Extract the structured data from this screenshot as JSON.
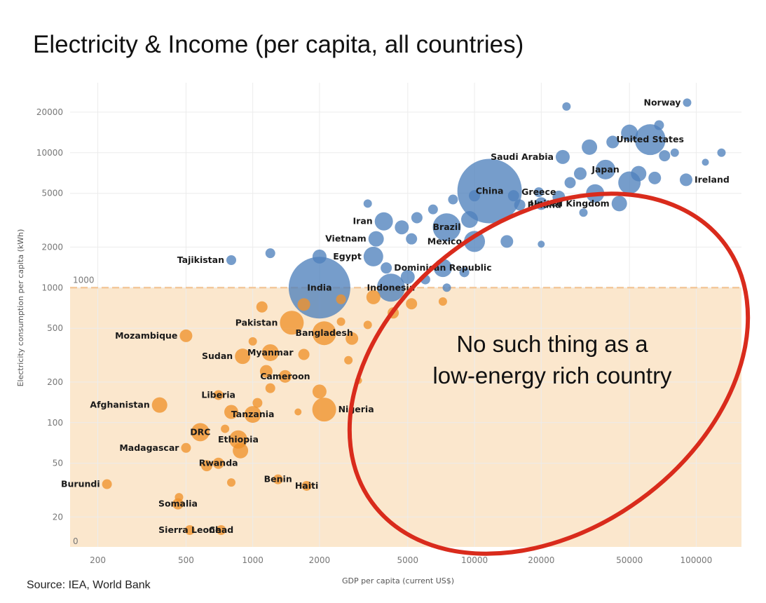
{
  "chart_data": {
    "type": "scatter",
    "title": "Electricity & Income (per capita, all countries)",
    "source": "Source: IEA, World Bank",
    "xlabel": "GDP per capita (current US$)",
    "ylabel": "Electricity consumption per capita (kWh)",
    "x_scale": "log",
    "y_scale": "log",
    "xlim": [
      150,
      160000
    ],
    "ylim": [
      12,
      33000
    ],
    "x_ticks": [
      200,
      500,
      1000,
      2000,
      5000,
      10000,
      20000,
      50000,
      100000
    ],
    "x_tick_labels": [
      "200",
      "500",
      "1000",
      "2000",
      "5000",
      "10000",
      "20000",
      "50000",
      "100000"
    ],
    "y_ticks": [
      20,
      50,
      100,
      200,
      500,
      1000,
      2000,
      5000,
      10000,
      20000
    ],
    "y_tick_labels": [
      "20",
      "50",
      "100",
      "200",
      "500",
      "1000",
      "2000",
      "5000",
      "10000",
      "20000"
    ],
    "y_zero_label": "0",
    "grid": true,
    "threshold": {
      "y": 1000,
      "label": "1000"
    },
    "colors": {
      "high": "#4f81bd",
      "low": "#f0922b",
      "band": "#fbe7cd",
      "ellipse": "#d92b1c",
      "threshold_line": "#f3c99d"
    },
    "callout": {
      "lines": [
        "No such thing as a",
        "low-energy rich country"
      ]
    },
    "points": [
      {
        "name": "Norway",
        "x": 91000,
        "y": 23500,
        "size": 6,
        "group": "high",
        "label_side": "left"
      },
      {
        "name": "United States",
        "x": 62000,
        "y": 12500,
        "size": 22,
        "group": "high",
        "label_side": "center"
      },
      {
        "name": "Saudi Arabia",
        "x": 25000,
        "y": 9300,
        "size": 10,
        "group": "high",
        "label_side": "left"
      },
      {
        "name": "Japan",
        "x": 39000,
        "y": 7500,
        "size": 14,
        "group": "high",
        "label_side": "center"
      },
      {
        "name": "Ireland",
        "x": 90000,
        "y": 6300,
        "size": 9,
        "group": "high",
        "label_side": "right"
      },
      {
        "name": "China",
        "x": 11700,
        "y": 5200,
        "size": 46,
        "group": "high",
        "label_side": "center"
      },
      {
        "name": "Greece",
        "x": 19500,
        "y": 5100,
        "size": 7,
        "group": "high",
        "label_side": "center"
      },
      {
        "name": "Poland",
        "x": 16000,
        "y": 4100,
        "size": 8,
        "group": "high",
        "label_side": "right"
      },
      {
        "name": "United Kingdom",
        "x": 45000,
        "y": 4200,
        "size": 11,
        "group": "high",
        "label_side": "left"
      },
      {
        "name": "Iran",
        "x": 3900,
        "y": 3100,
        "size": 13,
        "group": "high",
        "label_side": "left"
      },
      {
        "name": "Brazil",
        "x": 7500,
        "y": 2800,
        "size": 20,
        "group": "high",
        "label_side": "center"
      },
      {
        "name": "Mexico",
        "x": 10000,
        "y": 2200,
        "size": 15,
        "group": "high",
        "label_side": "left"
      },
      {
        "name": "Vietnam",
        "x": 3600,
        "y": 2300,
        "size": 11,
        "group": "high",
        "label_side": "left"
      },
      {
        "name": "Tajikistan",
        "x": 800,
        "y": 1600,
        "size": 7,
        "group": "high",
        "label_side": "left"
      },
      {
        "name": "Egypt",
        "x": 3500,
        "y": 1700,
        "size": 14,
        "group": "high",
        "label_side": "left"
      },
      {
        "name": "Dominican Republic",
        "x": 7200,
        "y": 1400,
        "size": 13,
        "group": "high",
        "label_side": "center"
      },
      {
        "name": "India",
        "x": 2000,
        "y": 1000,
        "size": 44,
        "group": "high",
        "label_side": "center"
      },
      {
        "name": "Indonesia",
        "x": 4200,
        "y": 1000,
        "size": 20,
        "group": "high",
        "label_side": "center"
      },
      {
        "name": "Pakistan",
        "x": 1500,
        "y": 550,
        "size": 17,
        "group": "low",
        "label_side": "left"
      },
      {
        "name": "Bangladesh",
        "x": 2100,
        "y": 460,
        "size": 17,
        "group": "low",
        "label_side": "center"
      },
      {
        "name": "Mozambique",
        "x": 500,
        "y": 440,
        "size": 9,
        "group": "low",
        "label_side": "left"
      },
      {
        "name": "Myanmar",
        "x": 1200,
        "y": 330,
        "size": 12,
        "group": "low",
        "label_side": "center"
      },
      {
        "name": "Sudan",
        "x": 900,
        "y": 310,
        "size": 11,
        "group": "low",
        "label_side": "left"
      },
      {
        "name": "Cameroon",
        "x": 1400,
        "y": 220,
        "size": 9,
        "group": "low",
        "label_side": "center"
      },
      {
        "name": "Liberia",
        "x": 700,
        "y": 160,
        "size": 7,
        "group": "low",
        "label_side": "center"
      },
      {
        "name": "Afghanistan",
        "x": 380,
        "y": 135,
        "size": 11,
        "group": "low",
        "label_side": "left"
      },
      {
        "name": "Nigeria",
        "x": 2100,
        "y": 125,
        "size": 17,
        "group": "low",
        "label_side": "right"
      },
      {
        "name": "Tanzania",
        "x": 1000,
        "y": 115,
        "size": 12,
        "group": "low",
        "label_side": "center"
      },
      {
        "name": "DRC",
        "x": 580,
        "y": 85,
        "size": 13,
        "group": "low",
        "label_side": "center"
      },
      {
        "name": "Ethiopia",
        "x": 860,
        "y": 75,
        "size": 13,
        "group": "low",
        "label_side": "center"
      },
      {
        "name": "Madagascar",
        "x": 500,
        "y": 65,
        "size": 7,
        "group": "low",
        "label_side": "left"
      },
      {
        "name": "Rwanda",
        "x": 700,
        "y": 50,
        "size": 8,
        "group": "low",
        "label_side": "center"
      },
      {
        "name": "Benin",
        "x": 1300,
        "y": 38,
        "size": 7,
        "group": "low",
        "label_side": "center"
      },
      {
        "name": "Burundi",
        "x": 220,
        "y": 35,
        "size": 7,
        "group": "low",
        "label_side": "left"
      },
      {
        "name": "Haiti",
        "x": 1750,
        "y": 34,
        "size": 7,
        "group": "low",
        "label_side": "center"
      },
      {
        "name": "Somalia",
        "x": 460,
        "y": 25,
        "size": 8,
        "group": "low",
        "label_side": "center"
      },
      {
        "name": "Sierra Leone",
        "x": 520,
        "y": 16,
        "size": 7,
        "group": "low",
        "label_side": "center"
      },
      {
        "name": "Chad",
        "x": 720,
        "y": 16,
        "size": 7,
        "group": "low",
        "label_side": "center"
      },
      {
        "x": 26000,
        "y": 22000,
        "size": 6,
        "group": "high"
      },
      {
        "x": 50000,
        "y": 14000,
        "size": 12,
        "group": "high"
      },
      {
        "x": 42000,
        "y": 12000,
        "size": 9,
        "group": "high"
      },
      {
        "x": 33000,
        "y": 11000,
        "size": 11,
        "group": "high"
      },
      {
        "x": 68000,
        "y": 16000,
        "size": 7,
        "group": "high"
      },
      {
        "x": 80000,
        "y": 10000,
        "size": 6,
        "group": "high"
      },
      {
        "x": 72000,
        "y": 9500,
        "size": 8,
        "group": "high"
      },
      {
        "x": 110000,
        "y": 8500,
        "size": 5,
        "group": "high"
      },
      {
        "x": 130000,
        "y": 10000,
        "size": 6,
        "group": "high"
      },
      {
        "x": 50000,
        "y": 6000,
        "size": 16,
        "group": "high"
      },
      {
        "x": 55000,
        "y": 7000,
        "size": 11,
        "group": "high"
      },
      {
        "x": 65000,
        "y": 6500,
        "size": 9,
        "group": "high"
      },
      {
        "x": 30000,
        "y": 7000,
        "size": 9,
        "group": "high"
      },
      {
        "x": 27000,
        "y": 6000,
        "size": 8,
        "group": "high"
      },
      {
        "x": 35000,
        "y": 5000,
        "size": 13,
        "group": "high"
      },
      {
        "x": 24000,
        "y": 4700,
        "size": 9,
        "group": "high"
      },
      {
        "x": 20000,
        "y": 4200,
        "size": 9,
        "group": "high"
      },
      {
        "x": 15000,
        "y": 4800,
        "size": 8,
        "group": "high"
      },
      {
        "x": 31000,
        "y": 3600,
        "size": 6,
        "group": "high"
      },
      {
        "x": 9500,
        "y": 3200,
        "size": 12,
        "group": "high"
      },
      {
        "x": 10000,
        "y": 4800,
        "size": 8,
        "group": "high"
      },
      {
        "x": 8000,
        "y": 4500,
        "size": 7,
        "group": "high"
      },
      {
        "x": 14000,
        "y": 2200,
        "size": 9,
        "group": "high"
      },
      {
        "x": 20000,
        "y": 2100,
        "size": 5,
        "group": "high"
      },
      {
        "x": 6500,
        "y": 3800,
        "size": 7,
        "group": "high"
      },
      {
        "x": 5500,
        "y": 3300,
        "size": 8,
        "group": "high"
      },
      {
        "x": 4700,
        "y": 2800,
        "size": 10,
        "group": "high"
      },
      {
        "x": 5200,
        "y": 2300,
        "size": 8,
        "group": "high"
      },
      {
        "x": 3300,
        "y": 4200,
        "size": 6,
        "group": "high"
      },
      {
        "x": 1200,
        "y": 1800,
        "size": 7,
        "group": "high"
      },
      {
        "x": 2000,
        "y": 1700,
        "size": 10,
        "group": "high"
      },
      {
        "x": 4000,
        "y": 1400,
        "size": 8,
        "group": "high"
      },
      {
        "x": 5000,
        "y": 1200,
        "size": 10,
        "group": "high"
      },
      {
        "x": 6000,
        "y": 1150,
        "size": 7,
        "group": "high"
      },
      {
        "x": 9000,
        "y": 1300,
        "size": 7,
        "group": "high"
      },
      {
        "x": 7500,
        "y": 1000,
        "size": 6,
        "group": "high"
      },
      {
        "x": 1700,
        "y": 750,
        "size": 9,
        "group": "low"
      },
      {
        "x": 1100,
        "y": 720,
        "size": 8,
        "group": "low"
      },
      {
        "x": 2500,
        "y": 820,
        "size": 7,
        "group": "low"
      },
      {
        "x": 3500,
        "y": 850,
        "size": 10,
        "group": "low"
      },
      {
        "x": 4300,
        "y": 650,
        "size": 8,
        "group": "low"
      },
      {
        "x": 5200,
        "y": 760,
        "size": 8,
        "group": "low"
      },
      {
        "x": 7200,
        "y": 790,
        "size": 6,
        "group": "low"
      },
      {
        "x": 2800,
        "y": 420,
        "size": 9,
        "group": "low"
      },
      {
        "x": 2500,
        "y": 560,
        "size": 6,
        "group": "low"
      },
      {
        "x": 3300,
        "y": 530,
        "size": 6,
        "group": "low"
      },
      {
        "x": 1000,
        "y": 400,
        "size": 6,
        "group": "low"
      },
      {
        "x": 1700,
        "y": 320,
        "size": 8,
        "group": "low"
      },
      {
        "x": 2700,
        "y": 290,
        "size": 6,
        "group": "low"
      },
      {
        "x": 1150,
        "y": 240,
        "size": 9,
        "group": "low"
      },
      {
        "x": 1200,
        "y": 180,
        "size": 7,
        "group": "low"
      },
      {
        "x": 3000,
        "y": 205,
        "size": 5,
        "group": "low"
      },
      {
        "x": 2000,
        "y": 170,
        "size": 10,
        "group": "low"
      },
      {
        "x": 1050,
        "y": 140,
        "size": 7,
        "group": "low"
      },
      {
        "x": 1600,
        "y": 120,
        "size": 5,
        "group": "low"
      },
      {
        "x": 800,
        "y": 120,
        "size": 10,
        "group": "low"
      },
      {
        "x": 750,
        "y": 90,
        "size": 6,
        "group": "low"
      },
      {
        "x": 880,
        "y": 62,
        "size": 11,
        "group": "low"
      },
      {
        "x": 620,
        "y": 48,
        "size": 8,
        "group": "low"
      },
      {
        "x": 800,
        "y": 36,
        "size": 6,
        "group": "low"
      },
      {
        "x": 465,
        "y": 28,
        "size": 6,
        "group": "low"
      }
    ]
  }
}
